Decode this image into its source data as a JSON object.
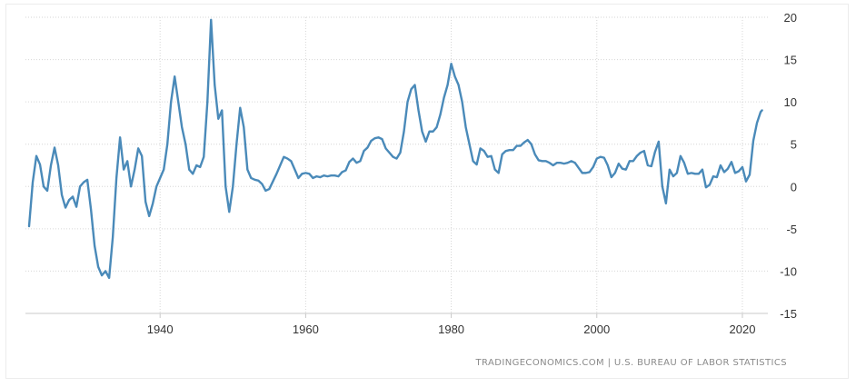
{
  "chart_data": {
    "type": "line",
    "title": "",
    "xlabel": "",
    "ylabel": "",
    "xlim": [
      1921.5,
      2023.5
    ],
    "ylim": [
      -15,
      20
    ],
    "x_ticks": [
      1940,
      1960,
      1980,
      2000,
      2020
    ],
    "y_ticks": [
      20,
      15,
      10,
      5,
      0,
      -5,
      -10,
      -15
    ],
    "grid": true,
    "legend": "none",
    "color": "#4a8ab9",
    "series": [
      {
        "points": [
          [
            1922.0,
            -4.7
          ],
          [
            1922.5,
            0.5
          ],
          [
            1923.0,
            3.6
          ],
          [
            1923.5,
            2.6
          ],
          [
            1924.0,
            0.0
          ],
          [
            1924.5,
            -0.5
          ],
          [
            1925.0,
            2.5
          ],
          [
            1925.5,
            4.6
          ],
          [
            1926.0,
            2.5
          ],
          [
            1926.5,
            -1.0
          ],
          [
            1927.0,
            -2.5
          ],
          [
            1927.5,
            -1.6
          ],
          [
            1928.0,
            -1.2
          ],
          [
            1928.5,
            -2.4
          ],
          [
            1929.0,
            0.0
          ],
          [
            1929.5,
            0.5
          ],
          [
            1930.0,
            0.8
          ],
          [
            1930.5,
            -2.7
          ],
          [
            1931.0,
            -7.0
          ],
          [
            1931.5,
            -9.5
          ],
          [
            1932.0,
            -10.5
          ],
          [
            1932.5,
            -10.0
          ],
          [
            1933.0,
            -10.8
          ],
          [
            1933.5,
            -6.0
          ],
          [
            1934.0,
            1.0
          ],
          [
            1934.5,
            5.8
          ],
          [
            1935.0,
            2.0
          ],
          [
            1935.5,
            3.0
          ],
          [
            1936.0,
            0.0
          ],
          [
            1936.5,
            2.0
          ],
          [
            1937.0,
            4.5
          ],
          [
            1937.5,
            3.6
          ],
          [
            1938.0,
            -1.8
          ],
          [
            1938.5,
            -3.5
          ],
          [
            1939.0,
            -2.0
          ],
          [
            1939.5,
            0.0
          ],
          [
            1940.0,
            1.0
          ],
          [
            1940.5,
            2.0
          ],
          [
            1941.0,
            5.0
          ],
          [
            1941.5,
            10.0
          ],
          [
            1942.0,
            13.0
          ],
          [
            1942.5,
            10.0
          ],
          [
            1943.0,
            7.0
          ],
          [
            1943.5,
            5.0
          ],
          [
            1944.0,
            2.0
          ],
          [
            1944.5,
            1.5
          ],
          [
            1945.0,
            2.5
          ],
          [
            1945.5,
            2.3
          ],
          [
            1946.0,
            3.5
          ],
          [
            1946.5,
            10.0
          ],
          [
            1947.0,
            19.7
          ],
          [
            1947.5,
            12.0
          ],
          [
            1948.0,
            8.0
          ],
          [
            1948.5,
            9.0
          ],
          [
            1949.0,
            0.0
          ],
          [
            1949.5,
            -3.0
          ],
          [
            1950.0,
            0.0
          ],
          [
            1950.5,
            5.0
          ],
          [
            1951.0,
            9.3
          ],
          [
            1951.5,
            7.0
          ],
          [
            1952.0,
            2.0
          ],
          [
            1952.5,
            1.0
          ],
          [
            1953.0,
            0.8
          ],
          [
            1953.5,
            0.7
          ],
          [
            1954.0,
            0.3
          ],
          [
            1954.5,
            -0.5
          ],
          [
            1955.0,
            -0.3
          ],
          [
            1955.5,
            0.6
          ],
          [
            1956.0,
            1.5
          ],
          [
            1956.5,
            2.5
          ],
          [
            1957.0,
            3.5
          ],
          [
            1957.5,
            3.3
          ],
          [
            1958.0,
            3.0
          ],
          [
            1958.5,
            2.0
          ],
          [
            1959.0,
            1.0
          ],
          [
            1959.5,
            1.5
          ],
          [
            1960.0,
            1.6
          ],
          [
            1960.5,
            1.5
          ],
          [
            1961.0,
            1.0
          ],
          [
            1961.5,
            1.2
          ],
          [
            1962.0,
            1.1
          ],
          [
            1962.5,
            1.3
          ],
          [
            1963.0,
            1.2
          ],
          [
            1963.5,
            1.3
          ],
          [
            1964.0,
            1.3
          ],
          [
            1964.5,
            1.2
          ],
          [
            1965.0,
            1.7
          ],
          [
            1965.5,
            1.9
          ],
          [
            1966.0,
            2.9
          ],
          [
            1966.5,
            3.3
          ],
          [
            1967.0,
            2.8
          ],
          [
            1967.5,
            3.0
          ],
          [
            1968.0,
            4.2
          ],
          [
            1968.5,
            4.6
          ],
          [
            1969.0,
            5.4
          ],
          [
            1969.5,
            5.7
          ],
          [
            1970.0,
            5.8
          ],
          [
            1970.5,
            5.6
          ],
          [
            1971.0,
            4.5
          ],
          [
            1971.5,
            4.0
          ],
          [
            1972.0,
            3.5
          ],
          [
            1972.5,
            3.3
          ],
          [
            1973.0,
            4.0
          ],
          [
            1973.5,
            6.5
          ],
          [
            1974.0,
            10.0
          ],
          [
            1974.5,
            11.5
          ],
          [
            1975.0,
            12.0
          ],
          [
            1975.5,
            9.0
          ],
          [
            1976.0,
            6.5
          ],
          [
            1976.5,
            5.3
          ],
          [
            1977.0,
            6.5
          ],
          [
            1977.5,
            6.5
          ],
          [
            1978.0,
            7.0
          ],
          [
            1978.5,
            8.5
          ],
          [
            1979.0,
            10.5
          ],
          [
            1979.5,
            12.0
          ],
          [
            1980.0,
            14.5
          ],
          [
            1980.5,
            13.0
          ],
          [
            1981.0,
            12.0
          ],
          [
            1981.5,
            10.0
          ],
          [
            1982.0,
            7.0
          ],
          [
            1982.5,
            5.0
          ],
          [
            1983.0,
            3.0
          ],
          [
            1983.5,
            2.6
          ],
          [
            1984.0,
            4.5
          ],
          [
            1984.5,
            4.2
          ],
          [
            1985.0,
            3.5
          ],
          [
            1985.5,
            3.6
          ],
          [
            1986.0,
            2.0
          ],
          [
            1986.5,
            1.6
          ],
          [
            1987.0,
            3.8
          ],
          [
            1987.5,
            4.2
          ],
          [
            1988.0,
            4.3
          ],
          [
            1988.5,
            4.3
          ],
          [
            1989.0,
            4.8
          ],
          [
            1989.5,
            4.8
          ],
          [
            1990.0,
            5.2
          ],
          [
            1990.5,
            5.5
          ],
          [
            1991.0,
            5.0
          ],
          [
            1991.5,
            3.8
          ],
          [
            1992.0,
            3.1
          ],
          [
            1992.5,
            3.0
          ],
          [
            1993.0,
            3.0
          ],
          [
            1993.5,
            2.8
          ],
          [
            1994.0,
            2.5
          ],
          [
            1994.5,
            2.8
          ],
          [
            1995.0,
            2.8
          ],
          [
            1995.5,
            2.7
          ],
          [
            1996.0,
            2.8
          ],
          [
            1996.5,
            3.0
          ],
          [
            1997.0,
            2.8
          ],
          [
            1997.5,
            2.2
          ],
          [
            1998.0,
            1.6
          ],
          [
            1998.5,
            1.6
          ],
          [
            1999.0,
            1.7
          ],
          [
            1999.5,
            2.3
          ],
          [
            2000.0,
            3.3
          ],
          [
            2000.5,
            3.5
          ],
          [
            2001.0,
            3.4
          ],
          [
            2001.5,
            2.5
          ],
          [
            2002.0,
            1.1
          ],
          [
            2002.5,
            1.6
          ],
          [
            2003.0,
            2.7
          ],
          [
            2003.5,
            2.1
          ],
          [
            2004.0,
            2.0
          ],
          [
            2004.5,
            3.0
          ],
          [
            2005.0,
            3.0
          ],
          [
            2005.5,
            3.6
          ],
          [
            2006.0,
            4.0
          ],
          [
            2006.5,
            4.2
          ],
          [
            2007.0,
            2.5
          ],
          [
            2007.5,
            2.4
          ],
          [
            2008.0,
            4.1
          ],
          [
            2008.5,
            5.3
          ],
          [
            2009.0,
            0.0
          ],
          [
            2009.5,
            -2.0
          ],
          [
            2010.0,
            2.0
          ],
          [
            2010.5,
            1.2
          ],
          [
            2011.0,
            1.6
          ],
          [
            2011.5,
            3.6
          ],
          [
            2012.0,
            2.8
          ],
          [
            2012.5,
            1.5
          ],
          [
            2013.0,
            1.6
          ],
          [
            2013.5,
            1.5
          ],
          [
            2014.0,
            1.5
          ],
          [
            2014.5,
            2.0
          ],
          [
            2015.0,
            -0.1
          ],
          [
            2015.5,
            0.2
          ],
          [
            2016.0,
            1.2
          ],
          [
            2016.5,
            1.1
          ],
          [
            2017.0,
            2.5
          ],
          [
            2017.5,
            1.7
          ],
          [
            2018.0,
            2.1
          ],
          [
            2018.5,
            2.9
          ],
          [
            2019.0,
            1.6
          ],
          [
            2019.5,
            1.8
          ],
          [
            2020.0,
            2.3
          ],
          [
            2020.5,
            0.6
          ],
          [
            2021.0,
            1.4
          ],
          [
            2021.5,
            5.4
          ],
          [
            2022.0,
            7.5
          ],
          [
            2022.5,
            8.8
          ],
          [
            2022.7,
            9.0
          ]
        ]
      }
    ]
  },
  "credit": "TRADINGECONOMICS.COM  |  U.S. BUREAU OF LABOR STATISTICS"
}
